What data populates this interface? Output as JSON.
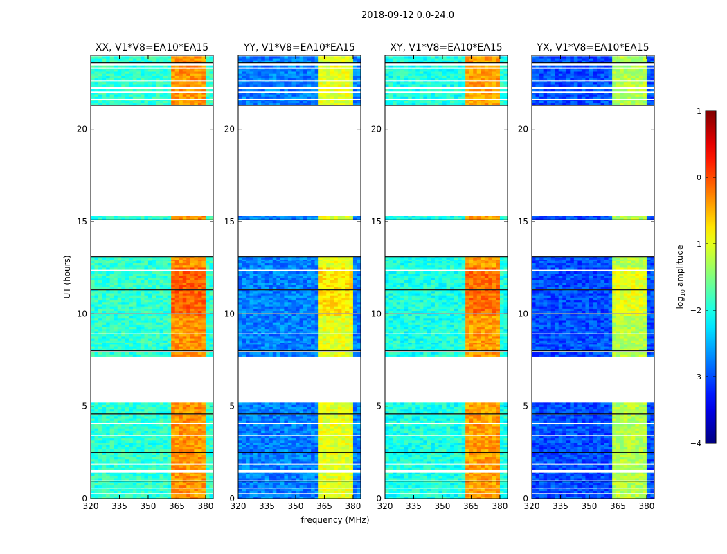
{
  "chart_data": {
    "type": "heatmap",
    "title": "2018-09-12 0.0-24.0",
    "xlabel": "frequency (MHz)",
    "ylabel": "UT (hours)",
    "xlim": [
      320,
      384
    ],
    "ylim": [
      0,
      24
    ],
    "xticks": [
      320,
      335,
      350,
      365,
      380
    ],
    "yticks": [
      0,
      5,
      10,
      15,
      20
    ],
    "time_segments_hours": [
      [
        0.0,
        0.25
      ],
      [
        0.3,
        0.55
      ],
      [
        0.6,
        0.95
      ],
      [
        1.0,
        1.4
      ],
      [
        1.55,
        1.85
      ],
      [
        1.9,
        2.5
      ],
      [
        2.55,
        3.4
      ],
      [
        3.45,
        4.05
      ],
      [
        4.1,
        4.55
      ],
      [
        4.6,
        5.2
      ],
      [
        7.7,
        7.95
      ],
      [
        8.0,
        8.4
      ],
      [
        8.45,
        8.9
      ],
      [
        8.95,
        10.0
      ],
      [
        10.05,
        11.3
      ],
      [
        11.35,
        12.3
      ],
      [
        12.4,
        12.9
      ],
      [
        12.95,
        13.1
      ],
      [
        15.1,
        15.3
      ],
      [
        21.3,
        21.6
      ],
      [
        21.65,
        21.95
      ],
      [
        22.05,
        22.2
      ],
      [
        22.3,
        22.6
      ],
      [
        22.65,
        23.3
      ],
      [
        23.35,
        23.45
      ],
      [
        23.6,
        23.95
      ]
    ],
    "bright_bands_MHz": [
      [
        361.5,
        366
      ],
      [
        366.8,
        371
      ],
      [
        371.8,
        375.5
      ],
      [
        376.3,
        380
      ]
    ],
    "panels": [
      {
        "title": "XX, V1*V8=EA10*EA15",
        "background_log10": -1.9,
        "band_log10": -0.35
      },
      {
        "title": "YY, V1*V8=EA10*EA15",
        "background_log10": -2.75,
        "band_log10": -1.0
      },
      {
        "title": "XY, V1*V8=EA10*EA15",
        "background_log10": -2.0,
        "band_log10": -0.4
      },
      {
        "title": "YX, V1*V8=EA10*EA15",
        "background_log10": -3.0,
        "band_log10": -1.25
      }
    ],
    "colorbar": {
      "label": "log10 amplitude",
      "label_main": "log",
      "label_sub": "10",
      "label_rest": " amplitude",
      "range": [
        -4,
        1
      ],
      "ticks": [
        "1",
        "0",
        "−1",
        "−2",
        "−3",
        "−4"
      ],
      "colormap": "jet"
    }
  }
}
